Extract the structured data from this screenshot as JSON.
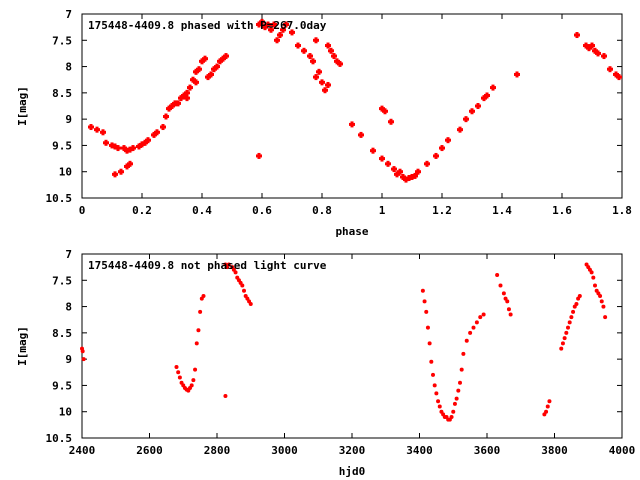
{
  "chart_data": [
    {
      "type": "scatter",
      "title": "175448-4409.8 phased with P=267.0day",
      "xlabel": "phase",
      "ylabel": "I[mag]",
      "xlim": [
        0,
        1.8
      ],
      "ylim": [
        10.5,
        7
      ],
      "y_inverted": true,
      "xticks": [
        "0",
        "0.2",
        "0.4",
        "0.6",
        "0.8",
        "1",
        "1.2",
        "1.4",
        "1.6",
        "1.8"
      ],
      "yticks": [
        "7",
        "7.5",
        "8",
        "8.5",
        "9",
        "9.5",
        "10",
        "10.5"
      ],
      "grid": false,
      "marker": "plus",
      "color": "#ff0000",
      "x": [
        0.03,
        0.05,
        0.07,
        0.08,
        0.1,
        0.11,
        0.12,
        0.14,
        0.15,
        0.16,
        0.17,
        0.19,
        0.2,
        0.21,
        0.22,
        0.24,
        0.25,
        0.27,
        0.28,
        0.29,
        0.3,
        0.31,
        0.32,
        0.33,
        0.34,
        0.35,
        0.35,
        0.36,
        0.37,
        0.38,
        0.38,
        0.39,
        0.4,
        0.41,
        0.42,
        0.43,
        0.44,
        0.45,
        0.46,
        0.47,
        0.48,
        0.59,
        0.6,
        0.61,
        0.62,
        0.63,
        0.64,
        0.65,
        0.66,
        0.67,
        0.68,
        0.7,
        0.72,
        0.74,
        0.76,
        0.77,
        0.78,
        0.78,
        0.79,
        0.8,
        0.81,
        0.82,
        0.82,
        0.83,
        0.84,
        0.85,
        0.86,
        0.9,
        0.93,
        0.97,
        1.0,
        1.02,
        1.04,
        1.05,
        1.06,
        1.07,
        1.08,
        1.09,
        1.1,
        1.11,
        1.12,
        1.15,
        1.18,
        1.2,
        1.22,
        1.26,
        1.28,
        1.3,
        1.32,
        1.34,
        1.35,
        1.37,
        1.45,
        1.65,
        1.68,
        1.69,
        1.7,
        1.71,
        1.72,
        1.74,
        1.76,
        1.78,
        1.79,
        0.11,
        0.13,
        0.15,
        0.16,
        0.59,
        1.0,
        1.01,
        1.03
      ],
      "y": [
        9.15,
        9.2,
        9.25,
        9.45,
        9.5,
        9.52,
        9.55,
        9.55,
        9.6,
        9.58,
        9.55,
        9.52,
        9.48,
        9.45,
        9.4,
        9.3,
        9.25,
        9.15,
        8.95,
        8.8,
        8.75,
        8.7,
        8.7,
        8.6,
        8.55,
        8.5,
        8.6,
        8.4,
        8.25,
        8.1,
        8.3,
        8.05,
        7.9,
        7.85,
        8.2,
        8.15,
        8.05,
        8.0,
        7.9,
        7.85,
        7.8,
        7.2,
        7.15,
        7.25,
        7.2,
        7.3,
        7.2,
        7.5,
        7.4,
        7.3,
        7.2,
        7.35,
        7.6,
        7.7,
        7.8,
        7.9,
        7.5,
        8.2,
        8.1,
        8.3,
        8.45,
        8.35,
        7.6,
        7.7,
        7.8,
        7.9,
        7.95,
        9.1,
        9.3,
        9.6,
        9.75,
        9.85,
        9.95,
        10.05,
        10.0,
        10.1,
        10.15,
        10.12,
        10.1,
        10.08,
        10.0,
        9.85,
        9.7,
        9.55,
        9.4,
        9.2,
        9.0,
        8.85,
        8.75,
        8.6,
        8.55,
        8.4,
        8.15,
        7.4,
        7.6,
        7.65,
        7.6,
        7.7,
        7.75,
        7.8,
        8.05,
        8.15,
        8.2,
        10.05,
        10.0,
        9.9,
        9.85,
        9.7,
        8.8,
        8.85,
        9.05
      ]
    },
    {
      "type": "scatter",
      "title": "175448-4409.8 not phased light curve",
      "xlabel": "hjd0",
      "ylabel": "I[mag]",
      "xlim": [
        2400,
        4000
      ],
      "ylim": [
        10.5,
        7
      ],
      "y_inverted": true,
      "xticks": [
        "2400",
        "2600",
        "2800",
        "3000",
        "3200",
        "3400",
        "3600",
        "3800",
        "4000"
      ],
      "yticks": [
        "7",
        "7.5",
        "8",
        "8.5",
        "9",
        "9.5",
        "10",
        "10.5"
      ],
      "grid": false,
      "marker": "dot",
      "color": "#ff0000",
      "x": [
        2400,
        2402,
        2405,
        2680,
        2685,
        2690,
        2695,
        2700,
        2705,
        2710,
        2715,
        2720,
        2725,
        2730,
        2735,
        2740,
        2745,
        2750,
        2755,
        2760,
        2825,
        2830,
        2835,
        2845,
        2850,
        2855,
        2860,
        2865,
        2870,
        2875,
        2880,
        2885,
        2890,
        2895,
        2900,
        2825,
        3410,
        3415,
        3420,
        3425,
        3430,
        3435,
        3440,
        3445,
        3450,
        3455,
        3460,
        3465,
        3470,
        3475,
        3480,
        3485,
        3490,
        3495,
        3500,
        3505,
        3510,
        3515,
        3520,
        3525,
        3530,
        3540,
        3550,
        3560,
        3570,
        3580,
        3590,
        3630,
        3640,
        3650,
        3655,
        3660,
        3665,
        3670,
        3770,
        3775,
        3780,
        3785,
        3820,
        3825,
        3830,
        3835,
        3840,
        3845,
        3850,
        3855,
        3860,
        3865,
        3870,
        3875,
        3895,
        3900,
        3905,
        3910,
        3915,
        3920,
        3925,
        3930,
        3935,
        3940,
        3945,
        3950
      ],
      "y": [
        8.8,
        8.85,
        9.0,
        9.15,
        9.25,
        9.35,
        9.45,
        9.5,
        9.55,
        9.58,
        9.6,
        9.55,
        9.5,
        9.4,
        9.2,
        8.7,
        8.45,
        8.1,
        7.85,
        7.8,
        7.2,
        7.25,
        7.2,
        7.25,
        7.3,
        7.35,
        7.45,
        7.5,
        7.55,
        7.6,
        7.7,
        7.8,
        7.85,
        7.9,
        7.95,
        9.7,
        7.7,
        7.9,
        8.1,
        8.4,
        8.7,
        9.05,
        9.3,
        9.5,
        9.65,
        9.8,
        9.9,
        10.0,
        10.05,
        10.1,
        10.1,
        10.15,
        10.15,
        10.1,
        10.0,
        9.85,
        9.75,
        9.6,
        9.45,
        9.2,
        8.9,
        8.65,
        8.5,
        8.4,
        8.3,
        8.2,
        8.15,
        7.4,
        7.6,
        7.75,
        7.85,
        7.9,
        8.05,
        8.15,
        10.05,
        10.0,
        9.9,
        9.8,
        8.8,
        8.7,
        8.6,
        8.5,
        8.4,
        8.3,
        8.2,
        8.1,
        8.0,
        7.95,
        7.85,
        7.8,
        7.2,
        7.25,
        7.3,
        7.35,
        7.45,
        7.6,
        7.7,
        7.75,
        7.8,
        7.9,
        8.0,
        8.2
      ]
    }
  ]
}
